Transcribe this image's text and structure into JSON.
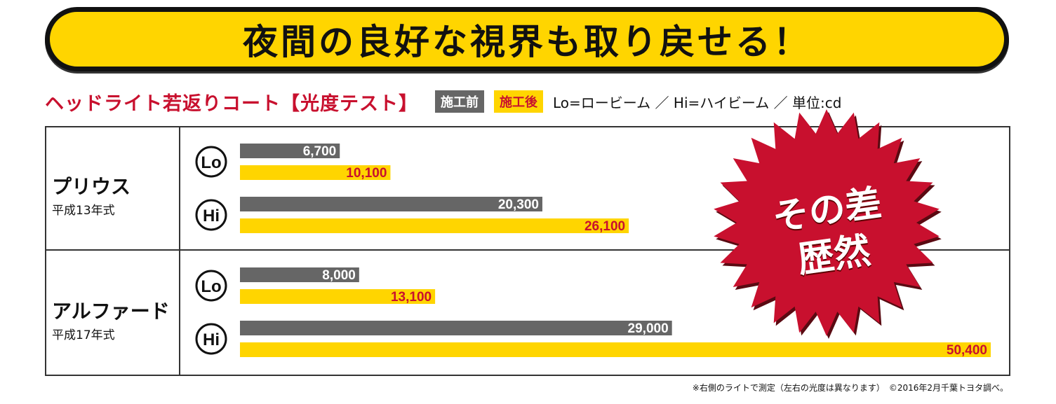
{
  "headline": "夜間の良好な視界も取り戻せる！",
  "subtitle": "ヘッドライト若返りコート【光度テスト】",
  "legend": {
    "before": "施工前",
    "after": "施工後",
    "note": "Lo=ロービーム ／ Hi=ハイビーム ／ 単位:cd"
  },
  "cars": [
    {
      "name": "プリウス",
      "year": "平成13年式"
    },
    {
      "name": "アルファード",
      "year": "平成17年式"
    }
  ],
  "badge": {
    "line1": "その差",
    "line2": "歴然"
  },
  "footnote": "※右側のライトで測定（左右の光度は異なります）　©2016年2月千葉トヨタ調べ。",
  "colors": {
    "before": "#666666",
    "after": "#ffd500",
    "after_label": "#c8102e",
    "badge": "#c8102e"
  },
  "chart_data": {
    "type": "bar",
    "orientation": "horizontal",
    "unit": "cd",
    "groups": [
      {
        "car": "プリウス",
        "beams": [
          {
            "beam": "Lo",
            "before": 6700,
            "after": 10100
          },
          {
            "beam": "Hi",
            "before": 20300,
            "after": 26100
          }
        ]
      },
      {
        "car": "アルファード",
        "beams": [
          {
            "beam": "Lo",
            "before": 8000,
            "after": 13100
          },
          {
            "beam": "Hi",
            "before": 29000,
            "after": 50400
          }
        ]
      }
    ]
  }
}
